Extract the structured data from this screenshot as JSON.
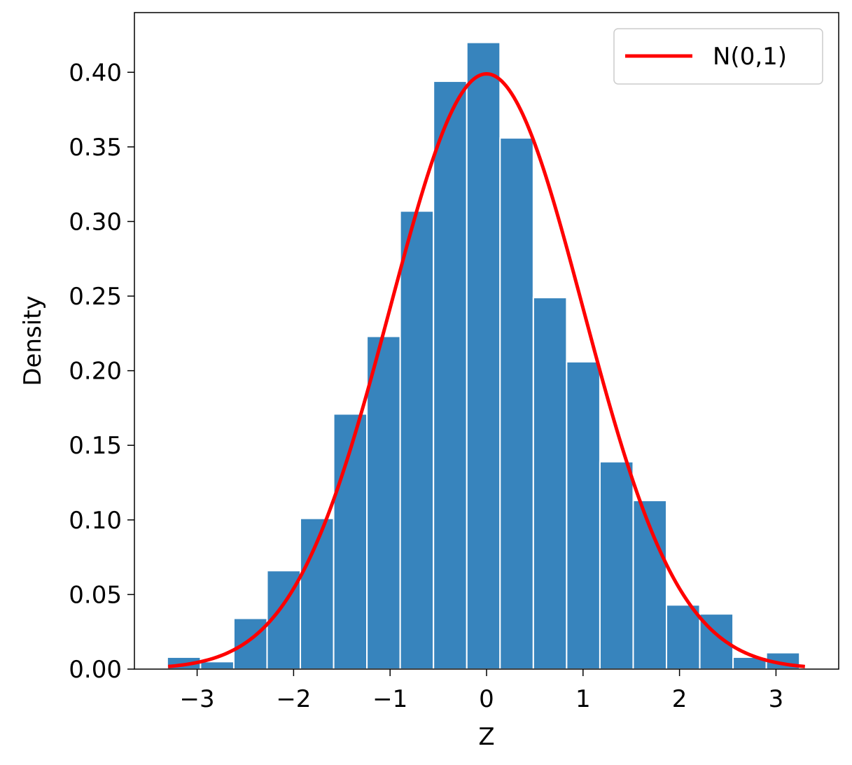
{
  "chart_data": {
    "type": "bar",
    "xlabel": "Z",
    "ylabel": "Density",
    "xlim": [
      -3.65,
      3.65
    ],
    "ylim": [
      0,
      0.44
    ],
    "x_ticks": [
      {
        "value": -3,
        "label": "−3"
      },
      {
        "value": -2,
        "label": "−2"
      },
      {
        "value": -1,
        "label": "−1"
      },
      {
        "value": 0,
        "label": "0"
      },
      {
        "value": 1,
        "label": "1"
      },
      {
        "value": 2,
        "label": "2"
      },
      {
        "value": 3,
        "label": "3"
      }
    ],
    "y_ticks": [
      {
        "value": 0.0,
        "label": "0.00"
      },
      {
        "value": 0.05,
        "label": "0.05"
      },
      {
        "value": 0.1,
        "label": "0.10"
      },
      {
        "value": 0.15,
        "label": "0.15"
      },
      {
        "value": 0.2,
        "label": "0.20"
      },
      {
        "value": 0.25,
        "label": "0.25"
      },
      {
        "value": 0.3,
        "label": "0.30"
      },
      {
        "value": 0.35,
        "label": "0.35"
      },
      {
        "value": 0.4,
        "label": "0.40"
      }
    ],
    "histogram": {
      "color": "#3784bd",
      "edge_color": "#ffffff",
      "bin_edges": [
        -3.31,
        -2.965,
        -2.62,
        -2.275,
        -1.93,
        -1.585,
        -1.24,
        -0.895,
        -0.55,
        -0.205,
        0.14,
        0.485,
        0.83,
        1.175,
        1.52,
        1.865,
        2.21,
        2.555,
        2.9,
        3.245,
        3.59
      ],
      "densities": [
        0.008,
        0.005,
        0.034,
        0.066,
        0.101,
        0.171,
        0.223,
        0.307,
        0.394,
        0.42,
        0.356,
        0.249,
        0.206,
        0.139,
        0.113,
        0.043,
        0.037,
        0.008,
        0.011,
        0.0
      ]
    },
    "series": [
      {
        "name": "N(0,1)",
        "type": "line",
        "color": "#ff0000",
        "mean": 0,
        "sd": 1,
        "x_range": [
          -3.3,
          3.3
        ]
      }
    ],
    "legend": {
      "position": "upper-right",
      "entries": [
        "N(0,1)"
      ]
    },
    "grid": false
  }
}
